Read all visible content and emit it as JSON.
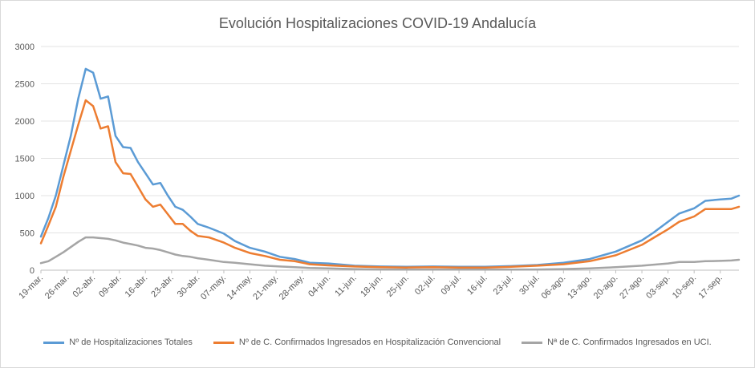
{
  "chart_data": {
    "type": "line",
    "title": "Evolución Hospitalizaciones COVID-19 Andalucía",
    "ylim": [
      0,
      3000
    ],
    "yticks": [
      0,
      500,
      1000,
      1500,
      2000,
      2500,
      3000
    ],
    "x_start": "19-mar.",
    "x_end": "22-sep.",
    "xticks": [
      "19-mar.",
      "26-mar.",
      "02-abr.",
      "09-abr.",
      "16-abr.",
      "23-abr.",
      "30-abr.",
      "07-may.",
      "14-may.",
      "21-may.",
      "28-may.",
      "04-jun.",
      "11-jun.",
      "18-jun.",
      "25-jun.",
      "02-jul.",
      "09-jul.",
      "16-jul.",
      "23-jul.",
      "30-jul.",
      "06-ago.",
      "13-ago.",
      "20-ago.",
      "27-ago.",
      "03-sep.",
      "10-sep.",
      "17-sep."
    ],
    "grid": true,
    "legend_position": "bottom",
    "series": [
      {
        "name": "Nº de Hospitalizaciones Totales",
        "color": "#5B9BD5",
        "points": [
          [
            "19-mar.",
            450
          ],
          [
            "21-mar.",
            700
          ],
          [
            "23-mar.",
            1000
          ],
          [
            "25-mar.",
            1400
          ],
          [
            "27-mar.",
            1800
          ],
          [
            "29-mar.",
            2300
          ],
          [
            "31-mar.",
            2700
          ],
          [
            "02-abr.",
            2650
          ],
          [
            "04-abr.",
            2300
          ],
          [
            "06-abr.",
            2330
          ],
          [
            "08-abr.",
            1800
          ],
          [
            "10-abr.",
            1650
          ],
          [
            "12-abr.",
            1640
          ],
          [
            "14-abr.",
            1450
          ],
          [
            "16-abr.",
            1300
          ],
          [
            "18-abr.",
            1150
          ],
          [
            "20-abr.",
            1170
          ],
          [
            "22-abr.",
            1000
          ],
          [
            "24-abr.",
            850
          ],
          [
            "26-abr.",
            810
          ],
          [
            "28-abr.",
            720
          ],
          [
            "30-abr.",
            620
          ],
          [
            "03-may.",
            570
          ],
          [
            "07-may.",
            490
          ],
          [
            "10-may.",
            390
          ],
          [
            "14-may.",
            300
          ],
          [
            "18-may.",
            250
          ],
          [
            "22-may.",
            180
          ],
          [
            "26-may.",
            150
          ],
          [
            "30-may.",
            100
          ],
          [
            "04-jun.",
            90
          ],
          [
            "11-jun.",
            60
          ],
          [
            "18-jun.",
            50
          ],
          [
            "25-jun.",
            45
          ],
          [
            "02-jul.",
            50
          ],
          [
            "09-jul.",
            45
          ],
          [
            "16-jul.",
            45
          ],
          [
            "23-jul.",
            55
          ],
          [
            "30-jul.",
            70
          ],
          [
            "06-ago.",
            100
          ],
          [
            "13-ago.",
            150
          ],
          [
            "20-ago.",
            250
          ],
          [
            "27-ago.",
            400
          ],
          [
            "30-ago.",
            500
          ],
          [
            "03-sep.",
            650
          ],
          [
            "06-sep.",
            760
          ],
          [
            "10-sep.",
            830
          ],
          [
            "13-sep.",
            930
          ],
          [
            "17-sep.",
            950
          ],
          [
            "20-sep.",
            960
          ],
          [
            "22-sep.",
            1000
          ]
        ]
      },
      {
        "name": "Nº de C. Confirmados Ingresados en Hospitalización Convencional",
        "color": "#ED7D31",
        "points": [
          [
            "19-mar.",
            360
          ],
          [
            "21-mar.",
            600
          ],
          [
            "23-mar.",
            850
          ],
          [
            "25-mar.",
            1250
          ],
          [
            "27-mar.",
            1600
          ],
          [
            "29-mar.",
            1950
          ],
          [
            "31-mar.",
            2280
          ],
          [
            "02-abr.",
            2200
          ],
          [
            "04-abr.",
            1900
          ],
          [
            "06-abr.",
            1930
          ],
          [
            "08-abr.",
            1450
          ],
          [
            "10-abr.",
            1300
          ],
          [
            "12-abr.",
            1290
          ],
          [
            "14-abr.",
            1120
          ],
          [
            "16-abr.",
            950
          ],
          [
            "18-abr.",
            850
          ],
          [
            "20-abr.",
            880
          ],
          [
            "22-abr.",
            750
          ],
          [
            "24-abr.",
            620
          ],
          [
            "26-abr.",
            620
          ],
          [
            "28-abr.",
            530
          ],
          [
            "30-abr.",
            460
          ],
          [
            "03-may.",
            440
          ],
          [
            "07-may.",
            370
          ],
          [
            "10-may.",
            300
          ],
          [
            "14-may.",
            230
          ],
          [
            "18-may.",
            190
          ],
          [
            "22-may.",
            140
          ],
          [
            "26-may.",
            120
          ],
          [
            "30-may.",
            80
          ],
          [
            "04-jun.",
            65
          ],
          [
            "11-jun.",
            50
          ],
          [
            "18-jun.",
            40
          ],
          [
            "25-jun.",
            35
          ],
          [
            "02-jul.",
            40
          ],
          [
            "09-jul.",
            35
          ],
          [
            "16-jul.",
            35
          ],
          [
            "23-jul.",
            45
          ],
          [
            "30-jul.",
            60
          ],
          [
            "06-ago.",
            80
          ],
          [
            "13-ago.",
            120
          ],
          [
            "20-ago.",
            200
          ],
          [
            "27-ago.",
            340
          ],
          [
            "30-ago.",
            430
          ],
          [
            "03-sep.",
            550
          ],
          [
            "06-sep.",
            650
          ],
          [
            "10-sep.",
            720
          ],
          [
            "13-sep.",
            820
          ],
          [
            "17-sep.",
            820
          ],
          [
            "20-sep.",
            820
          ],
          [
            "22-sep.",
            850
          ]
        ]
      },
      {
        "name": "Nª de C. Confirmados Ingresados en UCI.",
        "color": "#A5A5A5",
        "points": [
          [
            "19-mar.",
            95
          ],
          [
            "21-mar.",
            120
          ],
          [
            "23-mar.",
            180
          ],
          [
            "25-mar.",
            240
          ],
          [
            "27-mar.",
            310
          ],
          [
            "29-mar.",
            380
          ],
          [
            "31-mar.",
            440
          ],
          [
            "02-abr.",
            440
          ],
          [
            "04-abr.",
            430
          ],
          [
            "06-abr.",
            420
          ],
          [
            "08-abr.",
            400
          ],
          [
            "10-abr.",
            370
          ],
          [
            "12-abr.",
            350
          ],
          [
            "14-abr.",
            330
          ],
          [
            "16-abr.",
            300
          ],
          [
            "18-abr.",
            290
          ],
          [
            "20-abr.",
            270
          ],
          [
            "22-abr.",
            240
          ],
          [
            "24-abr.",
            210
          ],
          [
            "26-abr.",
            190
          ],
          [
            "28-abr.",
            180
          ],
          [
            "30-abr.",
            160
          ],
          [
            "03-may.",
            140
          ],
          [
            "07-may.",
            110
          ],
          [
            "10-may.",
            100
          ],
          [
            "14-may.",
            80
          ],
          [
            "18-may.",
            60
          ],
          [
            "22-may.",
            50
          ],
          [
            "26-may.",
            40
          ],
          [
            "30-may.",
            30
          ],
          [
            "04-jun.",
            25
          ],
          [
            "11-jun.",
            15
          ],
          [
            "18-jun.",
            10
          ],
          [
            "25-jun.",
            8
          ],
          [
            "02-jul.",
            8
          ],
          [
            "09-jul.",
            8
          ],
          [
            "16-jul.",
            8
          ],
          [
            "23-jul.",
            8
          ],
          [
            "30-jul.",
            10
          ],
          [
            "06-ago.",
            15
          ],
          [
            "13-ago.",
            25
          ],
          [
            "20-ago.",
            40
          ],
          [
            "27-ago.",
            60
          ],
          [
            "03-sep.",
            90
          ],
          [
            "06-sep.",
            110
          ],
          [
            "10-sep.",
            110
          ],
          [
            "13-sep.",
            120
          ],
          [
            "17-sep.",
            125
          ],
          [
            "20-sep.",
            130
          ],
          [
            "22-sep.",
            140
          ]
        ]
      }
    ]
  }
}
